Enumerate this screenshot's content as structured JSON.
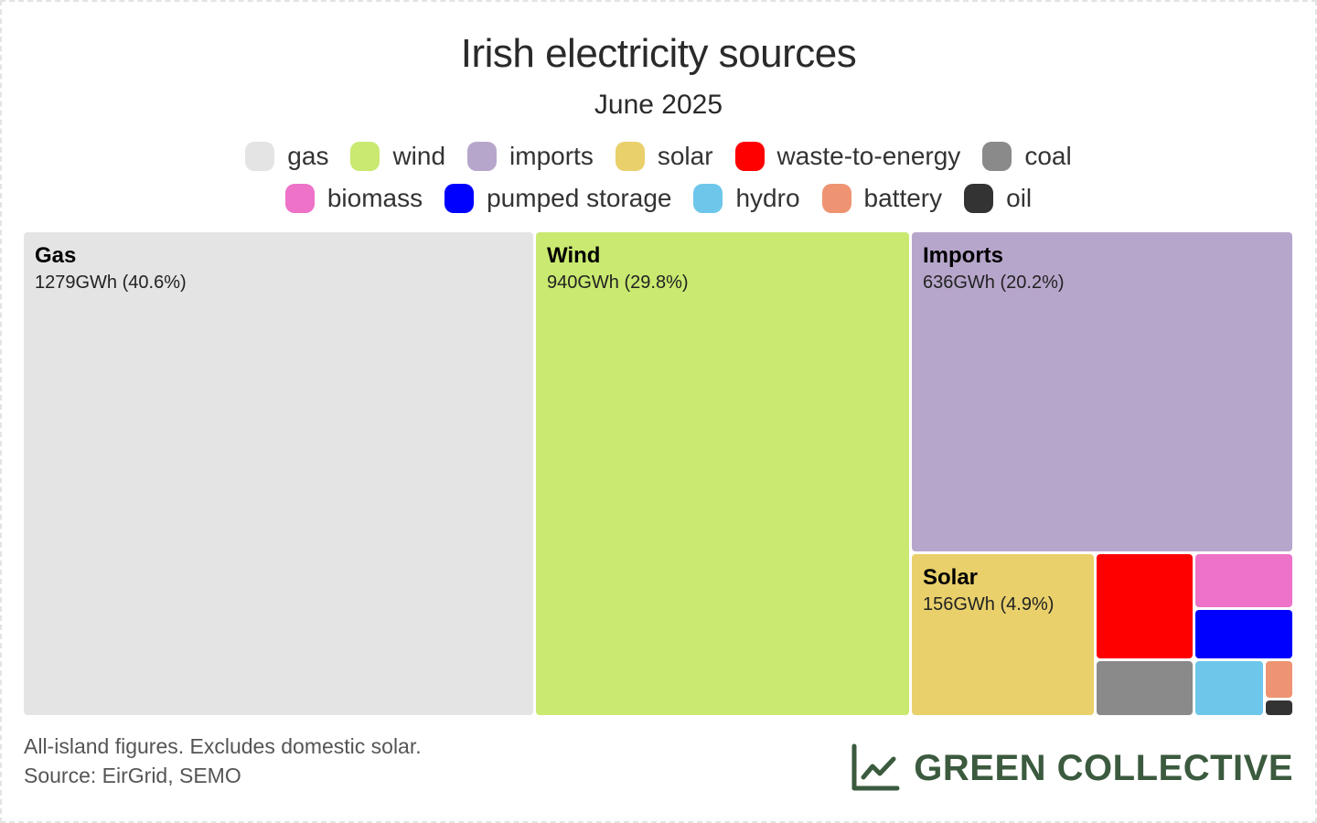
{
  "title": "Irish electricity sources",
  "subtitle": "June 2025",
  "legend": [
    {
      "label": "gas",
      "color": "#e4e4e4",
      "key": "gas"
    },
    {
      "label": "wind",
      "color": "#c9e970",
      "key": "wind"
    },
    {
      "label": "imports",
      "color": "#b7a6cb",
      "key": "imports"
    },
    {
      "label": "solar",
      "color": "#e9d06b",
      "key": "solar"
    },
    {
      "label": "waste-to-energy",
      "color": "#ff0000",
      "key": "waste-to-energy"
    },
    {
      "label": "coal",
      "color": "#8a8a8a",
      "key": "coal"
    },
    {
      "label": "biomass",
      "color": "#ed72c8",
      "key": "biomass"
    },
    {
      "label": "pumped storage",
      "color": "#0000ff",
      "key": "pumped-storage"
    },
    {
      "label": "hydro",
      "color": "#6ec7ea",
      "key": "hydro"
    },
    {
      "label": "battery",
      "color": "#ee9472",
      "key": "battery"
    },
    {
      "label": "oil",
      "color": "#333333",
      "key": "oil"
    }
  ],
  "chart_data": {
    "type": "treemap",
    "unit": "GWh",
    "items": [
      {
        "name": "Gas",
        "key": "gas",
        "value": 1279,
        "percent": 40.6,
        "label": "1279GWh (40.6%)"
      },
      {
        "name": "Wind",
        "key": "wind",
        "value": 940,
        "percent": 29.8,
        "label": "940GWh (29.8%)"
      },
      {
        "name": "Imports",
        "key": "imports",
        "value": 636,
        "percent": 20.2,
        "label": "636GWh (20.2%)"
      },
      {
        "name": "Solar",
        "key": "solar",
        "value": 156,
        "percent": 4.9,
        "label": "156GWh (4.9%)"
      },
      {
        "name": "",
        "key": "waste-to-energy",
        "value": 48
      },
      {
        "name": "",
        "key": "biomass",
        "value": 20
      },
      {
        "name": "",
        "key": "pumped-storage",
        "value": 20
      },
      {
        "name": "",
        "key": "coal",
        "value": 22
      },
      {
        "name": "",
        "key": "hydro",
        "value": 17
      },
      {
        "name": "",
        "key": "battery",
        "value": 4
      },
      {
        "name": "",
        "key": "oil",
        "value": 2
      }
    ]
  },
  "footnote": {
    "line1": "All-island figures. Excludes domestic solar.",
    "line2": "Source: EirGrid, SEMO"
  },
  "brand": {
    "name": "GREEN COLLECTIVE",
    "icon": "line-chart-icon",
    "color": "#3b5a3e"
  }
}
